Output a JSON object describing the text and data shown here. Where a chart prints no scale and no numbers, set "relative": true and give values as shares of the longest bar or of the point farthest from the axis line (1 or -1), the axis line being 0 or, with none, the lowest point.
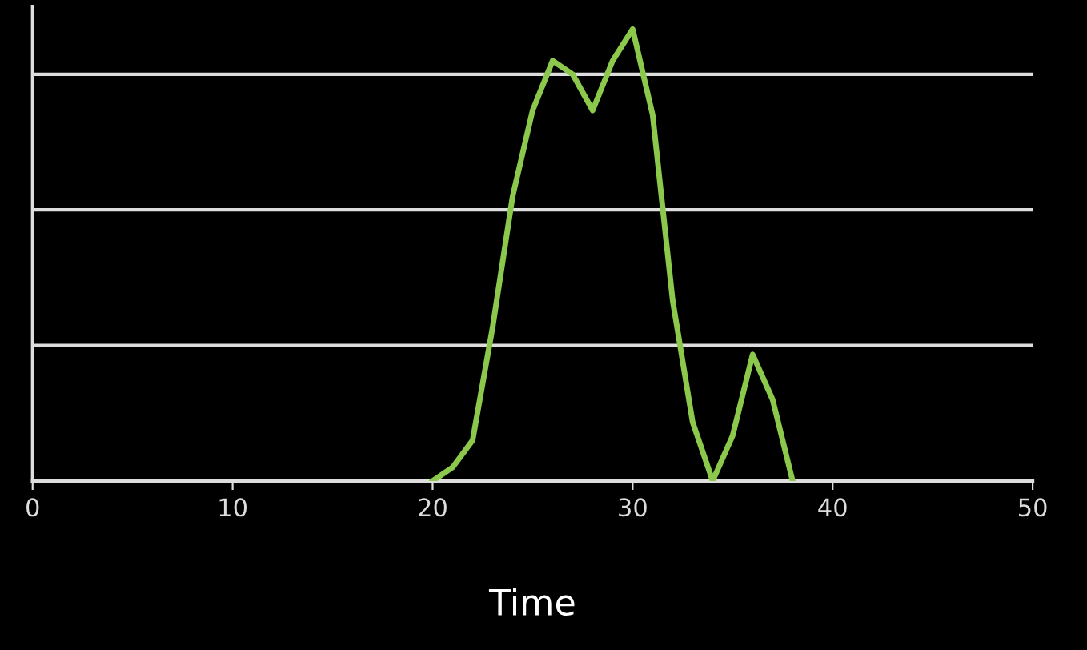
{
  "chart_data": {
    "type": "line",
    "xlabel": "Time",
    "relative": true,
    "x": [
      20,
      21,
      22,
      23,
      24,
      25,
      26,
      27,
      28,
      29,
      30,
      31,
      32,
      33,
      34,
      35,
      36,
      37,
      38
    ],
    "series": [
      {
        "color": "#8cc84b",
        "values": [
          0,
          0.03,
          0.09,
          0.34,
          0.63,
          0.82,
          0.93,
          0.9,
          0.82,
          0.93,
          1,
          0.81,
          0.4,
          0.13,
          0,
          0.1,
          0.28,
          0.18,
          0
        ]
      }
    ],
    "xlim": [
      0,
      50
    ],
    "xticks": [
      0,
      10,
      20,
      30,
      40,
      50
    ],
    "tick_labels": "x",
    "grid": "y",
    "marker": "none",
    "line_style": "solid"
  }
}
